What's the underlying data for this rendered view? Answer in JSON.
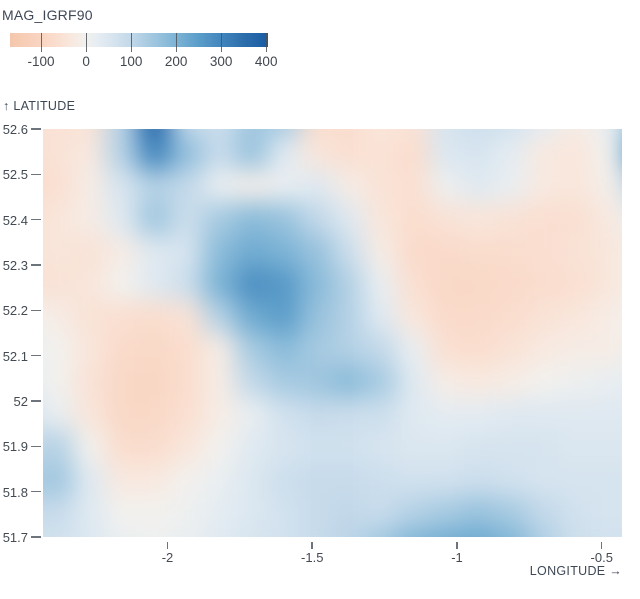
{
  "legend": {
    "title": "MAG_IGRF90",
    "tick_labels": [
      "-100",
      "0",
      "100",
      "200",
      "300",
      "400"
    ],
    "tick_values": [
      -100,
      0,
      100,
      200,
      300,
      400
    ]
  },
  "axes": {
    "y_label": "↑ LATITUDE",
    "x_label": "LONGITUDE →",
    "y_tick_labels": [
      "52.6",
      "52.5",
      "52.4",
      "52.3",
      "52.2",
      "52.1",
      "52",
      "51.9",
      "51.8",
      "51.7"
    ],
    "y_tick_values": [
      52.6,
      52.5,
      52.4,
      52.3,
      52.2,
      52.1,
      52.0,
      51.9,
      51.8,
      51.7
    ],
    "x_tick_labels": [
      "-2",
      "-1.5",
      "-1",
      "-0.5"
    ],
    "x_tick_values": [
      -2.0,
      -1.5,
      -1.0,
      -0.5
    ]
  },
  "chart_data": {
    "type": "heatmap",
    "title": "MAG_IGRF90",
    "xlabel": "LONGITUDE",
    "ylabel": "LATITUDE",
    "x_range": [
      -2.43,
      -0.43
    ],
    "y_range": [
      51.7,
      52.6
    ],
    "color_scale": {
      "label": "MAG_IGRF90",
      "domain": [
        -169,
        404
      ],
      "ticks": [
        -100,
        0,
        100,
        200,
        300,
        400
      ],
      "stops": [
        [
          -169,
          "#f5c7ac"
        ],
        [
          -100,
          "#f9d5c2"
        ],
        [
          -60,
          "#fadfd1"
        ],
        [
          -30,
          "#f8e9e0"
        ],
        [
          0,
          "#f2f1ee"
        ],
        [
          30,
          "#e4ecf2"
        ],
        [
          60,
          "#d6e4ef"
        ],
        [
          100,
          "#c2d8e9"
        ],
        [
          150,
          "#9fc6df"
        ],
        [
          200,
          "#7cb3d5"
        ],
        [
          250,
          "#5b9dc9"
        ],
        [
          300,
          "#4286bd"
        ],
        [
          350,
          "#2c6eac"
        ],
        [
          400,
          "#1b5da4"
        ]
      ]
    },
    "grid": {
      "cols": 20,
      "rows": 14,
      "description": "Estimated MAG_IGRF90 values (nT), rows top (lat 52.6) to bottom (lat 51.7), cols left (lon -2.43) to right (lon -0.43)",
      "values": [
        [
          -50,
          -55,
          -50,
          120,
          380,
          100,
          80,
          150,
          140,
          -70,
          -70,
          -40,
          -50,
          60,
          80,
          70,
          30,
          -20,
          20,
          180
        ],
        [
          -60,
          -50,
          -30,
          120,
          300,
          170,
          90,
          160,
          40,
          -40,
          -60,
          -50,
          -70,
          50,
          60,
          30,
          -30,
          -40,
          0,
          280
        ],
        [
          -70,
          -60,
          -20,
          60,
          120,
          100,
          20,
          -10,
          20,
          40,
          -20,
          -50,
          -60,
          10,
          40,
          20,
          -30,
          -40,
          -10,
          120
        ],
        [
          -60,
          -40,
          -20,
          40,
          150,
          80,
          140,
          180,
          160,
          100,
          40,
          -40,
          -70,
          -50,
          -40,
          -50,
          -60,
          -60,
          -30,
          20
        ],
        [
          -50,
          -40,
          -50,
          -20,
          40,
          60,
          180,
          220,
          200,
          160,
          80,
          -20,
          -80,
          -80,
          -70,
          -70,
          -60,
          -50,
          -40,
          0
        ],
        [
          -60,
          -50,
          -40,
          0,
          40,
          80,
          200,
          280,
          260,
          180,
          120,
          20,
          -60,
          -90,
          -90,
          -80,
          -70,
          -60,
          -40,
          0
        ],
        [
          0,
          -20,
          -50,
          -60,
          -70,
          -50,
          120,
          220,
          250,
          160,
          120,
          40,
          -40,
          -80,
          -80,
          -70,
          -50,
          -40,
          -20,
          0
        ],
        [
          20,
          0,
          -40,
          -80,
          -90,
          -70,
          -20,
          140,
          180,
          140,
          120,
          100,
          20,
          -60,
          -70,
          -50,
          -30,
          -20,
          -20,
          10
        ],
        [
          30,
          0,
          -50,
          -90,
          -95,
          -70,
          -20,
          100,
          140,
          150,
          180,
          140,
          40,
          -20,
          -30,
          -20,
          0,
          10,
          20,
          30
        ],
        [
          60,
          20,
          -40,
          -90,
          -90,
          -60,
          -20,
          20,
          70,
          90,
          80,
          80,
          40,
          30,
          30,
          40,
          40,
          40,
          40,
          40
        ],
        [
          100,
          120,
          0,
          -70,
          -70,
          -40,
          0,
          40,
          60,
          70,
          70,
          60,
          50,
          50,
          60,
          60,
          60,
          50,
          50,
          50
        ],
        [
          130,
          150,
          40,
          -30,
          -30,
          0,
          20,
          50,
          80,
          90,
          90,
          80,
          70,
          70,
          80,
          70,
          60,
          60,
          60,
          60
        ],
        [
          90,
          90,
          40,
          0,
          0,
          10,
          30,
          50,
          70,
          90,
          100,
          90,
          120,
          140,
          160,
          140,
          100,
          70,
          60,
          60
        ],
        [
          60,
          70,
          50,
          20,
          10,
          20,
          40,
          60,
          70,
          90,
          110,
          150,
          200,
          220,
          230,
          200,
          130,
          80,
          70,
          70
        ]
      ]
    }
  }
}
